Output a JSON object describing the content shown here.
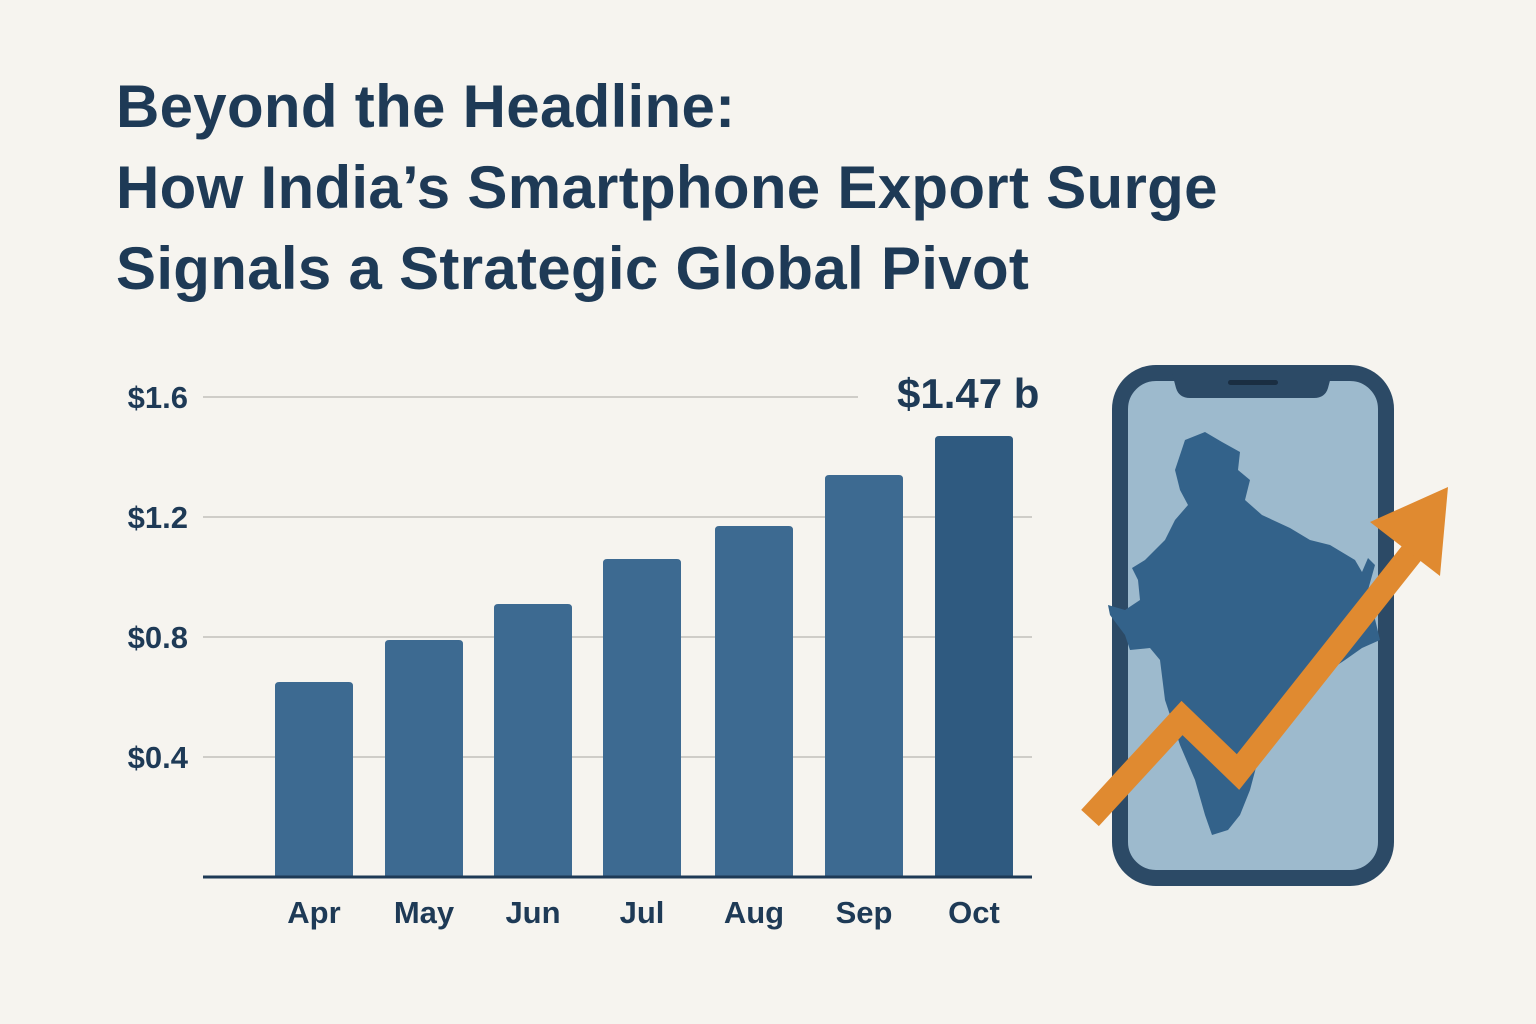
{
  "title_lines": [
    "Beyond the Headline:",
    "How India’s Smartphone Export Surge",
    "Signals a Strategic Global Pivot"
  ],
  "colors": {
    "background": "#f6f4ef",
    "title": "#1e3a56",
    "bar": "#3d6a91",
    "bar_highlight": "#2f5a80",
    "phone_frame": "#2c4a66",
    "phone_screen": "#9dbacd",
    "map": "#33628a",
    "arrow": "#e08a30"
  },
  "icons": [
    "smartphone-icon",
    "india-map-icon",
    "trend-up-arrow-icon"
  ],
  "chart_data": {
    "type": "bar",
    "categories": [
      "Apr",
      "May",
      "Jun",
      "Jul",
      "Aug",
      "Sep",
      "Oct"
    ],
    "values": [
      0.65,
      0.79,
      0.91,
      1.06,
      1.17,
      1.34,
      1.47
    ],
    "ylim": [
      0,
      1.6
    ],
    "yticks": [
      0.4,
      0.8,
      1.2,
      1.6
    ],
    "ytick_labels": [
      "$0.4",
      "$0.8",
      "$1.2",
      "$1.6"
    ],
    "grid": true,
    "highlight_label": "$1.47 b",
    "xlabel": "",
    "ylabel": ""
  }
}
